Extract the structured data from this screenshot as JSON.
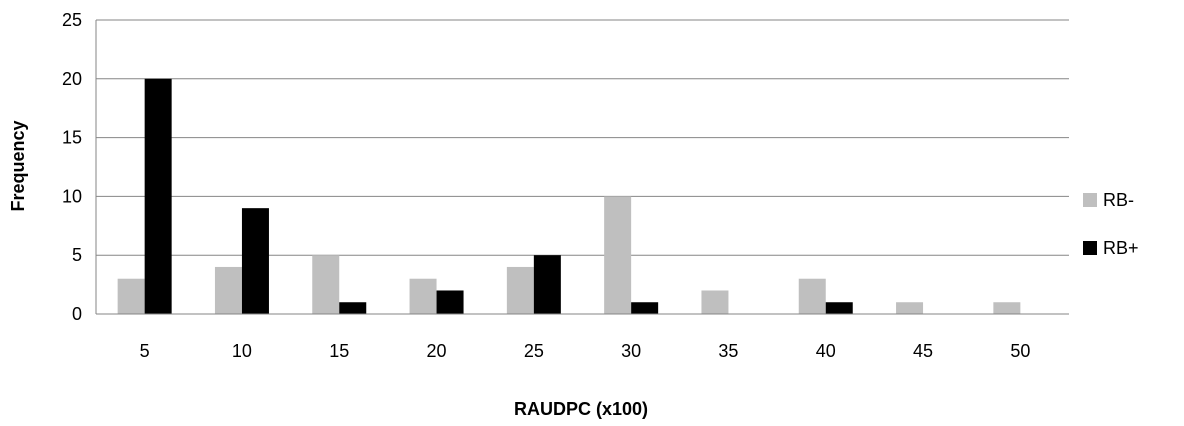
{
  "chart_data": {
    "type": "bar",
    "title": "",
    "xlabel": "RAUDPC (x100)",
    "ylabel": "Frequency",
    "categories": [
      "5",
      "10",
      "15",
      "20",
      "25",
      "30",
      "35",
      "40",
      "45",
      "50"
    ],
    "series": [
      {
        "name": "RB-",
        "values": [
          3,
          4,
          5,
          3,
          4,
          10,
          2,
          3,
          1,
          1
        ],
        "color": "#bfbfbf"
      },
      {
        "name": "RB+",
        "values": [
          20,
          9,
          1,
          2,
          5,
          1,
          0,
          1,
          0,
          0
        ],
        "color": "#000000"
      }
    ],
    "ylim": [
      0,
      25
    ],
    "yticks": [
      "0",
      "5",
      "10",
      "15",
      "20",
      "25"
    ],
    "grid": true,
    "legend_position": "right"
  }
}
